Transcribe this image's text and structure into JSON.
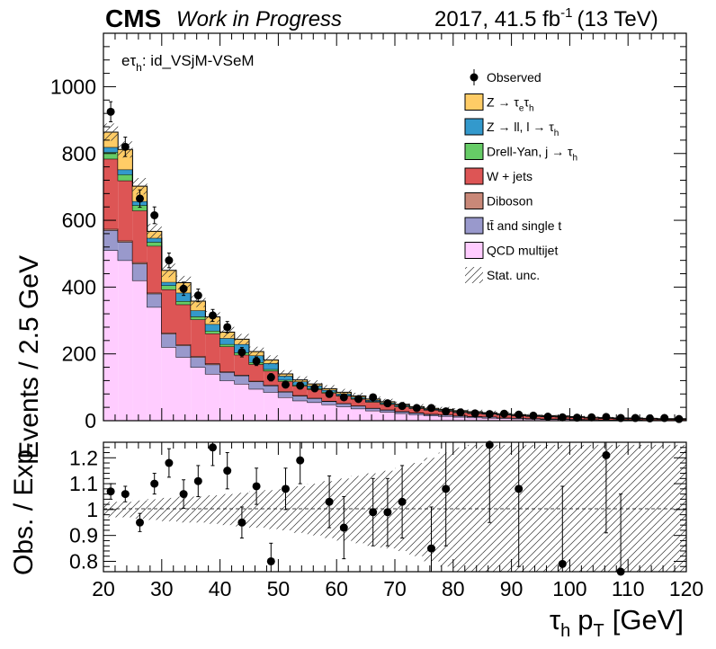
{
  "header": {
    "experiment": "CMS",
    "status": "Work in Progress",
    "lumi_prefix": "2017, 41.5 fb",
    "lumi_exp": "-1",
    "lumi_suffix": "(13 TeV)"
  },
  "category": {
    "e": "eτ",
    "sub": "h",
    "rest": ": id_VSjM-VSeM"
  },
  "legend": [
    {
      "key": "observed",
      "main": "Observed",
      "sub": "",
      "after": "",
      "kind": "data"
    },
    {
      "key": "ztt",
      "main": "Z → τ",
      "sub": "e",
      "after": "τ",
      "sub2": "h",
      "color": "#ffcc66",
      "kind": "fill"
    },
    {
      "key": "zll",
      "main": "Z → ll, l → τ",
      "sub": "h",
      "after": "",
      "color": "#3399cc",
      "kind": "fill"
    },
    {
      "key": "dy",
      "main": "Drell-Yan, j → τ",
      "sub": "h",
      "after": "",
      "color": "#66cc66",
      "kind": "fill"
    },
    {
      "key": "wjets",
      "main": "W + jets",
      "sub": "",
      "after": "",
      "color": "#dd5555",
      "kind": "fill"
    },
    {
      "key": "diboson",
      "main": "Diboson",
      "sub": "",
      "after": "",
      "color": "#c98878",
      "kind": "fill"
    },
    {
      "key": "ttbar",
      "main": "tt̄ and single t",
      "sub": "",
      "after": "",
      "color": "#9999cc",
      "kind": "fill"
    },
    {
      "key": "qcd",
      "main": "QCD multijet",
      "sub": "",
      "after": "",
      "color": "#ffccff",
      "kind": "fill"
    },
    {
      "key": "unc",
      "main": "Stat. unc.",
      "sub": "",
      "after": "",
      "kind": "hatch"
    }
  ],
  "chart_data": {
    "type": "bar",
    "title": "CMS Work in Progress — 2017, 41.5 fb-1 (13 TeV)",
    "xlabel": "τh pT [GeV]",
    "ylabel": "Events / 2.5 GeV",
    "ratio_ylabel": "Obs. / Exp.",
    "xlim": [
      20,
      120
    ],
    "ylim": [
      0,
      1160
    ],
    "ratio_ylim": [
      0.76,
      1.26
    ],
    "x_ticks": [
      20,
      30,
      40,
      50,
      60,
      70,
      80,
      90,
      100,
      110,
      120
    ],
    "y_ticks": [
      0,
      200,
      400,
      600,
      800,
      1000
    ],
    "ratio_ticks": [
      0.8,
      0.9,
      1.0,
      1.1,
      1.2
    ],
    "ratio_tick_labels": [
      "0.8",
      "0.9",
      "1",
      "1.1",
      "1.2"
    ],
    "bin_edges": [
      20,
      22.5,
      25,
      27.5,
      30,
      32.5,
      35,
      37.5,
      40,
      42.5,
      45,
      47.5,
      50,
      52.5,
      55,
      57.5,
      60,
      62.5,
      65,
      67.5,
      70,
      72.5,
      75,
      77.5,
      80,
      82.5,
      85,
      87.5,
      90,
      92.5,
      95,
      97.5,
      100,
      102.5,
      105,
      107.5,
      110,
      112.5,
      115,
      117.5,
      120
    ],
    "stack_order": [
      "qcd",
      "ttbar",
      "diboson",
      "wjets",
      "dy",
      "zll",
      "ztt"
    ],
    "series": [
      {
        "name": "QCD multijet",
        "key": "qcd",
        "values": [
          510,
          480,
          420,
          340,
          220,
          190,
          160,
          140,
          120,
          110,
          95,
          85,
          70,
          60,
          55,
          48,
          42,
          36,
          30,
          26,
          22,
          18,
          15,
          13,
          11,
          9,
          8,
          7,
          6,
          5,
          4,
          4,
          3,
          3,
          2,
          2,
          2,
          1,
          1,
          1
        ]
      },
      {
        "name": "tt and single t",
        "key": "ttbar",
        "values": [
          60,
          55,
          50,
          40,
          40,
          35,
          30,
          28,
          25,
          25,
          22,
          20,
          16,
          14,
          12,
          10,
          9,
          8,
          7,
          6,
          5,
          5,
          4,
          4,
          3,
          3,
          3,
          2,
          2,
          2,
          2,
          2,
          2,
          1,
          1,
          1,
          1,
          1,
          1,
          1
        ]
      },
      {
        "name": "Diboson",
        "key": "diboson",
        "values": [
          4,
          4,
          4,
          3,
          3,
          3,
          3,
          3,
          2,
          2,
          2,
          2,
          2,
          2,
          1,
          1,
          1,
          1,
          1,
          1,
          1,
          1,
          1,
          1,
          1,
          1,
          1,
          0,
          0,
          0,
          0,
          0,
          0,
          0,
          0,
          0,
          0,
          0,
          0,
          0
        ]
      },
      {
        "name": "W + jets",
        "key": "wjets",
        "values": [
          210,
          180,
          155,
          140,
          130,
          120,
          110,
          90,
          75,
          60,
          50,
          42,
          30,
          28,
          26,
          24,
          22,
          20,
          18,
          16,
          14,
          13,
          12,
          11,
          10,
          9,
          8,
          8,
          7,
          6,
          6,
          5,
          5,
          4,
          4,
          3,
          3,
          3,
          2,
          2
        ]
      },
      {
        "name": "Drell-Yan, j → τh",
        "key": "dy",
        "values": [
          20,
          18,
          16,
          12,
          12,
          10,
          9,
          8,
          7,
          7,
          6,
          5,
          4,
          3,
          3,
          3,
          2,
          2,
          2,
          2,
          2,
          1,
          1,
          1,
          1,
          1,
          1,
          1,
          1,
          1,
          1,
          1,
          0,
          0,
          0,
          0,
          0,
          0,
          0,
          0
        ]
      },
      {
        "name": "Z → ll, l → τh",
        "key": "zll",
        "values": [
          15,
          15,
          12,
          12,
          10,
          25,
          18,
          20,
          18,
          25,
          20,
          18,
          12,
          10,
          8,
          6,
          5,
          4,
          4,
          3,
          3,
          2,
          2,
          2,
          2,
          2,
          2,
          2,
          1,
          1,
          1,
          1,
          1,
          1,
          1,
          1,
          1,
          1,
          1,
          1
        ]
      },
      {
        "name": "Z → τeτh",
        "key": "ztt",
        "values": [
          45,
          60,
          45,
          20,
          35,
          30,
          28,
          22,
          18,
          15,
          12,
          10,
          6,
          5,
          5,
          4,
          4,
          3,
          3,
          3,
          2,
          2,
          2,
          2,
          2,
          2,
          1,
          1,
          1,
          1,
          1,
          1,
          1,
          1,
          1,
          1,
          1,
          1,
          1,
          1
        ]
      }
    ],
    "observed": {
      "name": "Observed",
      "values": [
        925,
        820,
        665,
        615,
        480,
        395,
        375,
        315,
        280,
        205,
        178,
        130,
        108,
        105,
        97,
        80,
        70,
        65,
        70,
        52,
        44,
        38,
        38,
        28,
        25,
        22,
        20,
        21,
        18,
        15,
        12,
        10,
        9,
        10,
        11,
        8,
        8,
        7,
        8,
        5
      ],
      "errors": [
        30,
        29,
        26,
        25,
        22,
        20,
        19,
        18,
        17,
        14,
        13,
        11,
        10,
        10,
        10,
        9,
        8,
        8,
        8,
        7,
        7,
        6,
        6,
        5,
        5,
        5,
        4,
        5,
        4,
        4,
        3,
        3,
        3,
        3,
        3,
        3,
        3,
        3,
        3,
        2
      ]
    },
    "stat_unc_rel": [
      0.03,
      0.03,
      0.035,
      0.04,
      0.045,
      0.05,
      0.05,
      0.055,
      0.06,
      0.065,
      0.07,
      0.075,
      0.08,
      0.09,
      0.1,
      0.11,
      0.12,
      0.13,
      0.14,
      0.15,
      0.16,
      0.18,
      0.2,
      0.22,
      0.24,
      0.25,
      0.25,
      0.25,
      0.25,
      0.25,
      0.25,
      0.25,
      0.25,
      0.25,
      0.25,
      0.25,
      0.25,
      0.25,
      0.25,
      0.25
    ],
    "ratio": {
      "x": [
        21.25,
        23.75,
        26.25,
        28.75,
        31.25,
        33.75,
        36.25,
        38.75,
        41.25,
        43.75,
        46.25,
        48.75,
        51.25,
        53.75,
        58.75,
        61.25,
        66.25,
        68.75,
        71.25,
        76.25,
        78.75,
        86.25,
        91.25,
        98.75,
        106.25,
        108.75
      ],
      "values": [
        1.07,
        1.06,
        0.95,
        1.1,
        1.18,
        1.06,
        1.11,
        1.24,
        1.15,
        0.95,
        1.09,
        0.8,
        1.08,
        1.19,
        1.03,
        0.93,
        0.99,
        0.99,
        1.03,
        0.85,
        1.08,
        1.25,
        1.08,
        0.79,
        1.21,
        0.76
      ],
      "errors": [
        0.03,
        0.03,
        0.035,
        0.04,
        0.055,
        0.055,
        0.06,
        0.07,
        0.07,
        0.06,
        0.07,
        0.07,
        0.08,
        0.09,
        0.1,
        0.12,
        0.13,
        0.13,
        0.14,
        0.16,
        0.22,
        0.3,
        0.3,
        0.3,
        0.3,
        0.3
      ]
    }
  }
}
